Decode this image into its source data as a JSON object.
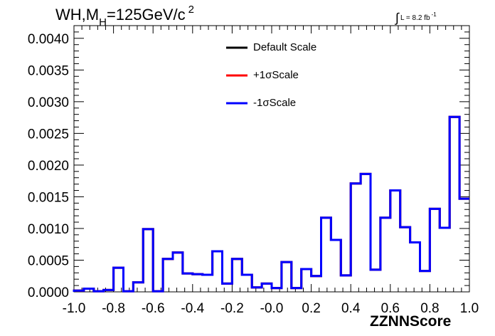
{
  "chart_data": {
    "type": "line",
    "title": {
      "main": "WH,M",
      "sub": "H",
      "rest": "=125GeV/c",
      "sup": "2"
    },
    "lumi_label": {
      "integral": "∫",
      "text": "L = 8.2 fb",
      "sup": "-1"
    },
    "xlabel": "ZZNNScore",
    "ylabel": "",
    "xlim": [
      -1.0,
      1.0
    ],
    "ylim": [
      0.0,
      0.0042
    ],
    "x_ticks": [
      "-1.0",
      "-0.8",
      "-0.6",
      "-0.4",
      "-0.2",
      "-0.0",
      "0.2",
      "0.4",
      "0.6",
      "0.8",
      "1.0"
    ],
    "y_ticks": [
      "0.0000",
      "0.0005",
      "0.0010",
      "0.0015",
      "0.0020",
      "0.0025",
      "0.0030",
      "0.0035",
      "0.0040"
    ],
    "legend_position": "top-center",
    "bin_edges": [
      -1.0,
      -0.95,
      -0.9,
      -0.85,
      -0.8,
      -0.75,
      -0.7,
      -0.65,
      -0.6,
      -0.55,
      -0.5,
      -0.45,
      -0.4,
      -0.35,
      -0.3,
      -0.25,
      -0.2,
      -0.15,
      -0.1,
      -0.05,
      0.0,
      0.05,
      0.1,
      0.15,
      0.2,
      0.25,
      0.3,
      0.35,
      0.4,
      0.45,
      0.5,
      0.55,
      0.6,
      0.65,
      0.7,
      0.75,
      0.8,
      0.85,
      0.9,
      0.95,
      1.0
    ],
    "series": [
      {
        "name": "Default Scale",
        "color": "#000000",
        "values": [
          2e-05,
          5e-05,
          1e-05,
          3e-05,
          0.00038,
          1e-05,
          0.00015,
          0.00099,
          1e-05,
          0.00052,
          0.00062,
          0.00029,
          0.00028,
          0.00027,
          0.00064,
          0.00013,
          0.00052,
          0.00027,
          7e-05,
          0.00013,
          6e-05,
          0.00047,
          6e-05,
          0.00036,
          0.00025,
          0.00117,
          0.00082,
          0.00026,
          0.00171,
          0.00186,
          0.00035,
          0.00117,
          0.0016,
          0.00102,
          0.00078,
          0.00033,
          0.00131,
          0.00101,
          0.00276,
          0.00147
        ]
      },
      {
        "name": "+1σScale",
        "color": "#ff0000",
        "values": [
          2e-05,
          5e-05,
          1e-05,
          3e-05,
          0.00038,
          1e-05,
          0.00015,
          0.00099,
          1e-05,
          0.00052,
          0.00062,
          0.00029,
          0.00028,
          0.00027,
          0.00064,
          0.00013,
          0.00052,
          0.00027,
          7e-05,
          0.00013,
          6e-05,
          0.00047,
          6e-05,
          0.00036,
          0.00025,
          0.00117,
          0.00082,
          0.00026,
          0.00171,
          0.00186,
          0.00035,
          0.00117,
          0.0016,
          0.00102,
          0.00078,
          0.00033,
          0.00131,
          0.00101,
          0.00276,
          0.00147
        ]
      },
      {
        "name": "-1σScale",
        "color": "#0000ff",
        "values": [
          2e-05,
          5e-05,
          1e-05,
          3e-05,
          0.00038,
          1e-05,
          0.00015,
          0.00099,
          1e-05,
          0.00052,
          0.00062,
          0.00029,
          0.00028,
          0.00027,
          0.00064,
          0.00013,
          0.00052,
          0.00027,
          7e-05,
          0.00013,
          6e-05,
          0.00047,
          6e-05,
          0.00036,
          0.00025,
          0.00117,
          0.00082,
          0.00026,
          0.00171,
          0.00186,
          0.00035,
          0.00117,
          0.0016,
          0.00102,
          0.00078,
          0.00033,
          0.00131,
          0.00101,
          0.00276,
          0.00147
        ]
      }
    ]
  }
}
